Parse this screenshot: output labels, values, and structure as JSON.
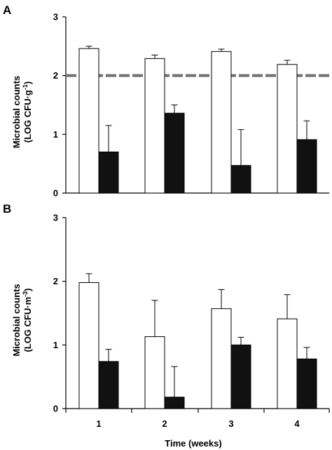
{
  "chart_data": [
    {
      "panel": "A",
      "type": "bar",
      "categories": [
        "1",
        "2",
        "3",
        "4"
      ],
      "ylabel_line1": "Microbial counts",
      "ylabel_line2": "(LOG CFU·g",
      "ylabel_sup": "-1",
      "ylabel_close": ")",
      "xlabel": "",
      "ylim": [
        0,
        3
      ],
      "yticks": [
        "0",
        "1",
        "2",
        "3"
      ],
      "reference_line": 2,
      "series": [
        {
          "fill": "#ffffff",
          "values": [
            2.46,
            2.29,
            2.41,
            2.19
          ],
          "errors": [
            0.04,
            0.06,
            0.04,
            0.07
          ]
        },
        {
          "fill": "#111111",
          "values": [
            0.7,
            1.36,
            0.47,
            0.91
          ],
          "errors": [
            0.45,
            0.14,
            0.61,
            0.32
          ]
        }
      ]
    },
    {
      "panel": "B",
      "type": "bar",
      "categories": [
        "1",
        "2",
        "3",
        "4"
      ],
      "ylabel_line1": "Microbial counts",
      "ylabel_line2": "(LOG CFU·m",
      "ylabel_sup": "-3",
      "ylabel_close": ")",
      "xlabel": "Time (weeks)",
      "ylim": [
        0,
        3
      ],
      "yticks": [
        "0",
        "1",
        "2",
        "3"
      ],
      "series": [
        {
          "fill": "#ffffff",
          "values": [
            1.98,
            1.13,
            1.57,
            1.41
          ],
          "errors": [
            0.14,
            0.57,
            0.3,
            0.38
          ]
        },
        {
          "fill": "#111111",
          "values": [
            0.74,
            0.18,
            1.0,
            0.78
          ],
          "errors": [
            0.19,
            0.48,
            0.12,
            0.18
          ]
        }
      ]
    }
  ],
  "colors": {
    "axis": "#000000",
    "reference_line": "#707070",
    "bar_outline": "#000000"
  }
}
